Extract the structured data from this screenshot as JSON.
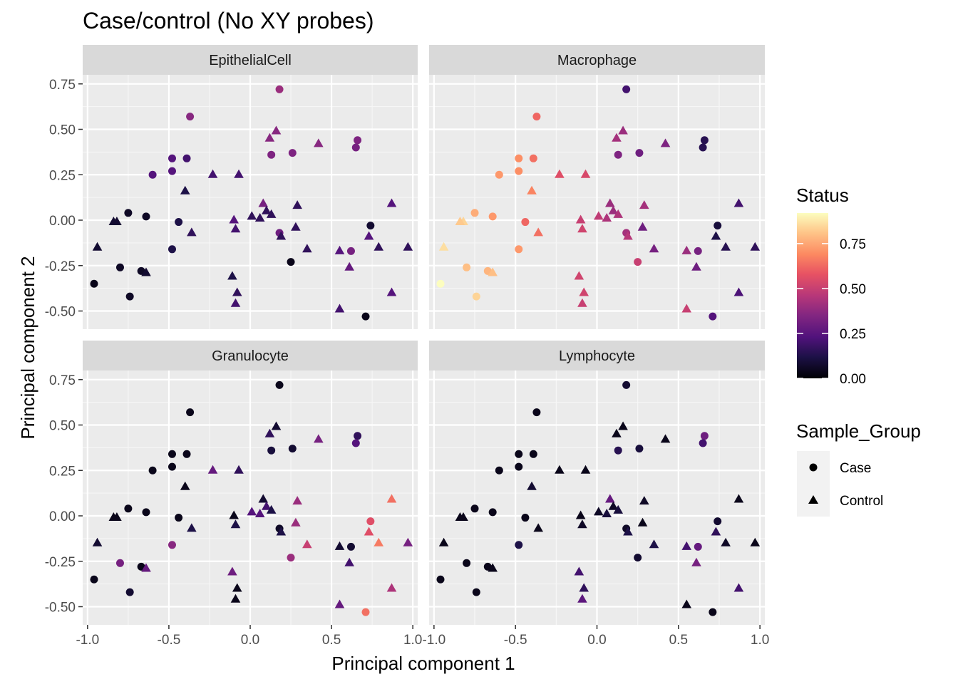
{
  "chart_data": {
    "type": "scatter",
    "title": "Case/control (No XY probes)",
    "xlabel": "Principal component 1",
    "ylabel": "Principal component 2",
    "xlim": [
      -1.03,
      1.03
    ],
    "ylim": [
      -0.6,
      0.8
    ],
    "xticks": [
      -1.0,
      -0.5,
      0.0,
      0.5,
      1.0
    ],
    "xtick_labels": [
      "-1.0",
      "-0.5",
      "0.0",
      "0.5",
      "1.0"
    ],
    "yticks": [
      -0.5,
      -0.25,
      0.0,
      0.25,
      0.5,
      0.75
    ],
    "ytick_labels": [
      "-0.50",
      "-0.25",
      "0.00",
      "0.25",
      "0.50",
      "0.75"
    ],
    "grid": true,
    "colormap": "magma",
    "color_legend": {
      "title": "Status",
      "range": [
        0,
        0.92
      ],
      "ticks": [
        0.0,
        0.25,
        0.5,
        0.75
      ],
      "tick_labels": [
        "0.00",
        "0.25",
        "0.50",
        "0.75"
      ]
    },
    "shape_legend": {
      "title": "Sample_Group",
      "entries": [
        {
          "label": "Case",
          "shape": "circle"
        },
        {
          "label": "Control",
          "shape": "triangle"
        }
      ]
    },
    "points": [
      {
        "x": 0.18,
        "y": 0.72,
        "g": "Case"
      },
      {
        "x": -0.37,
        "y": 0.57,
        "g": "Case"
      },
      {
        "x": 0.16,
        "y": 0.49,
        "g": "Control"
      },
      {
        "x": 0.12,
        "y": 0.45,
        "g": "Control"
      },
      {
        "x": 0.66,
        "y": 0.44,
        "g": "Case"
      },
      {
        "x": 0.42,
        "y": 0.42,
        "g": "Control"
      },
      {
        "x": 0.65,
        "y": 0.4,
        "g": "Case"
      },
      {
        "x": 0.26,
        "y": 0.37,
        "g": "Case"
      },
      {
        "x": 0.13,
        "y": 0.36,
        "g": "Case"
      },
      {
        "x": -0.48,
        "y": 0.34,
        "g": "Case"
      },
      {
        "x": -0.39,
        "y": 0.34,
        "g": "Case"
      },
      {
        "x": -0.48,
        "y": 0.27,
        "g": "Case"
      },
      {
        "x": -0.6,
        "y": 0.25,
        "g": "Case"
      },
      {
        "x": -0.23,
        "y": 0.25,
        "g": "Control"
      },
      {
        "x": -0.07,
        "y": 0.25,
        "g": "Control"
      },
      {
        "x": -0.4,
        "y": 0.16,
        "g": "Control"
      },
      {
        "x": 0.87,
        "y": 0.09,
        "g": "Control"
      },
      {
        "x": 0.08,
        "y": 0.09,
        "g": "Control"
      },
      {
        "x": 0.29,
        "y": 0.08,
        "g": "Control"
      },
      {
        "x": -0.75,
        "y": 0.04,
        "g": "Case"
      },
      {
        "x": 0.1,
        "y": 0.05,
        "g": "Control"
      },
      {
        "x": 0.13,
        "y": 0.03,
        "g": "Control"
      },
      {
        "x": 0.01,
        "y": 0.02,
        "g": "Control"
      },
      {
        "x": -0.64,
        "y": 0.02,
        "g": "Case"
      },
      {
        "x": 0.06,
        "y": 0.01,
        "g": "Control"
      },
      {
        "x": -0.1,
        "y": 0.0,
        "g": "Control"
      },
      {
        "x": -0.82,
        "y": -0.01,
        "g": "Control"
      },
      {
        "x": -0.84,
        "y": -0.01,
        "g": "Control"
      },
      {
        "x": -0.44,
        "y": -0.01,
        "g": "Case"
      },
      {
        "x": 0.74,
        "y": -0.03,
        "g": "Case"
      },
      {
        "x": 0.28,
        "y": -0.04,
        "g": "Control"
      },
      {
        "x": -0.09,
        "y": -0.05,
        "g": "Control"
      },
      {
        "x": 0.18,
        "y": -0.07,
        "g": "Case"
      },
      {
        "x": -0.36,
        "y": -0.07,
        "g": "Control"
      },
      {
        "x": 0.73,
        "y": -0.09,
        "g": "Control"
      },
      {
        "x": 0.19,
        "y": -0.09,
        "g": "Control"
      },
      {
        "x": 0.25,
        "y": -0.23,
        "g": "Case"
      },
      {
        "x": -0.94,
        "y": -0.15,
        "g": "Control"
      },
      {
        "x": -0.48,
        "y": -0.16,
        "g": "Case"
      },
      {
        "x": 0.35,
        "y": -0.16,
        "g": "Control"
      },
      {
        "x": 0.79,
        "y": -0.15,
        "g": "Control"
      },
      {
        "x": 0.97,
        "y": -0.15,
        "g": "Control"
      },
      {
        "x": 0.55,
        "y": -0.17,
        "g": "Control"
      },
      {
        "x": 0.62,
        "y": -0.17,
        "g": "Case"
      },
      {
        "x": -0.8,
        "y": -0.26,
        "g": "Case"
      },
      {
        "x": 0.61,
        "y": -0.26,
        "g": "Control"
      },
      {
        "x": -0.67,
        "y": -0.28,
        "g": "Case"
      },
      {
        "x": -0.64,
        "y": -0.29,
        "g": "Control"
      },
      {
        "x": -0.11,
        "y": -0.31,
        "g": "Control"
      },
      {
        "x": -0.96,
        "y": -0.35,
        "g": "Case"
      },
      {
        "x": -0.74,
        "y": -0.42,
        "g": "Case"
      },
      {
        "x": -0.08,
        "y": -0.4,
        "g": "Control"
      },
      {
        "x": 0.87,
        "y": -0.4,
        "g": "Control"
      },
      {
        "x": -0.09,
        "y": -0.46,
        "g": "Control"
      },
      {
        "x": 0.55,
        "y": -0.49,
        "g": "Control"
      },
      {
        "x": 0.71,
        "y": -0.53,
        "g": "Case"
      }
    ],
    "facets": [
      {
        "name": "EpithelialCell",
        "status": [
          0.4,
          0.36,
          0.36,
          0.36,
          0.34,
          0.36,
          0.32,
          0.34,
          0.34,
          0.24,
          0.2,
          0.24,
          0.24,
          0.2,
          0.2,
          0.12,
          0.24,
          0.32,
          0.16,
          0.06,
          0.16,
          0.16,
          0.16,
          0.06,
          0.16,
          0.24,
          0.08,
          0.08,
          0.12,
          0.08,
          0.16,
          0.2,
          0.3,
          0.16,
          0.24,
          0.16,
          0.04,
          0.08,
          0.12,
          0.16,
          0.16,
          0.16,
          0.24,
          0.32,
          0.06,
          0.28,
          0.06,
          0.08,
          0.12,
          0.04,
          0.06,
          0.16,
          0.24,
          0.2,
          0.2,
          0.04
        ]
      },
      {
        "name": "Macrophage",
        "status": [
          0.2,
          0.62,
          0.4,
          0.42,
          0.14,
          0.34,
          0.14,
          0.3,
          0.34,
          0.7,
          0.64,
          0.7,
          0.72,
          0.56,
          0.54,
          0.68,
          0.2,
          0.4,
          0.42,
          0.76,
          0.4,
          0.44,
          0.48,
          0.72,
          0.44,
          0.5,
          0.84,
          0.82,
          0.62,
          0.1,
          0.3,
          0.52,
          0.42,
          0.64,
          0.12,
          0.46,
          0.5,
          0.86,
          0.72,
          0.32,
          0.14,
          0.16,
          0.4,
          0.32,
          0.8,
          0.3,
          0.78,
          0.8,
          0.52,
          0.92,
          0.84,
          0.52,
          0.22,
          0.5,
          0.5,
          0.24
        ]
      },
      {
        "name": "Granulocyte",
        "status": [
          0.04,
          0.04,
          0.08,
          0.16,
          0.16,
          0.32,
          0.24,
          0.08,
          0.1,
          0.04,
          0.04,
          0.04,
          0.04,
          0.28,
          0.16,
          0.04,
          0.64,
          0.08,
          0.4,
          0.04,
          0.2,
          0.12,
          0.24,
          0.04,
          0.24,
          0.04,
          0.04,
          0.04,
          0.04,
          0.56,
          0.4,
          0.12,
          0.06,
          0.12,
          0.56,
          0.12,
          0.4,
          0.08,
          0.36,
          0.5,
          0.66,
          0.32,
          0.08,
          0.08,
          0.32,
          0.2,
          0.04,
          0.28,
          0.3,
          0.04,
          0.08,
          0.04,
          0.44,
          0.04,
          0.28,
          0.64
        ]
      },
      {
        "name": "Lymphocyte",
        "status": [
          0.08,
          0.04,
          0.04,
          0.04,
          0.3,
          0.04,
          0.2,
          0.1,
          0.14,
          0.04,
          0.04,
          0.04,
          0.04,
          0.04,
          0.04,
          0.08,
          0.04,
          0.28,
          0.06,
          0.04,
          0.06,
          0.1,
          0.06,
          0.04,
          0.1,
          0.04,
          0.04,
          0.04,
          0.04,
          0.08,
          0.04,
          0.06,
          0.06,
          0.04,
          0.16,
          0.12,
          0.08,
          0.04,
          0.12,
          0.12,
          0.06,
          0.04,
          0.2,
          0.28,
          0.04,
          0.32,
          0.04,
          0.04,
          0.2,
          0.04,
          0.04,
          0.16,
          0.2,
          0.26,
          0.04,
          0.04
        ]
      }
    ]
  }
}
